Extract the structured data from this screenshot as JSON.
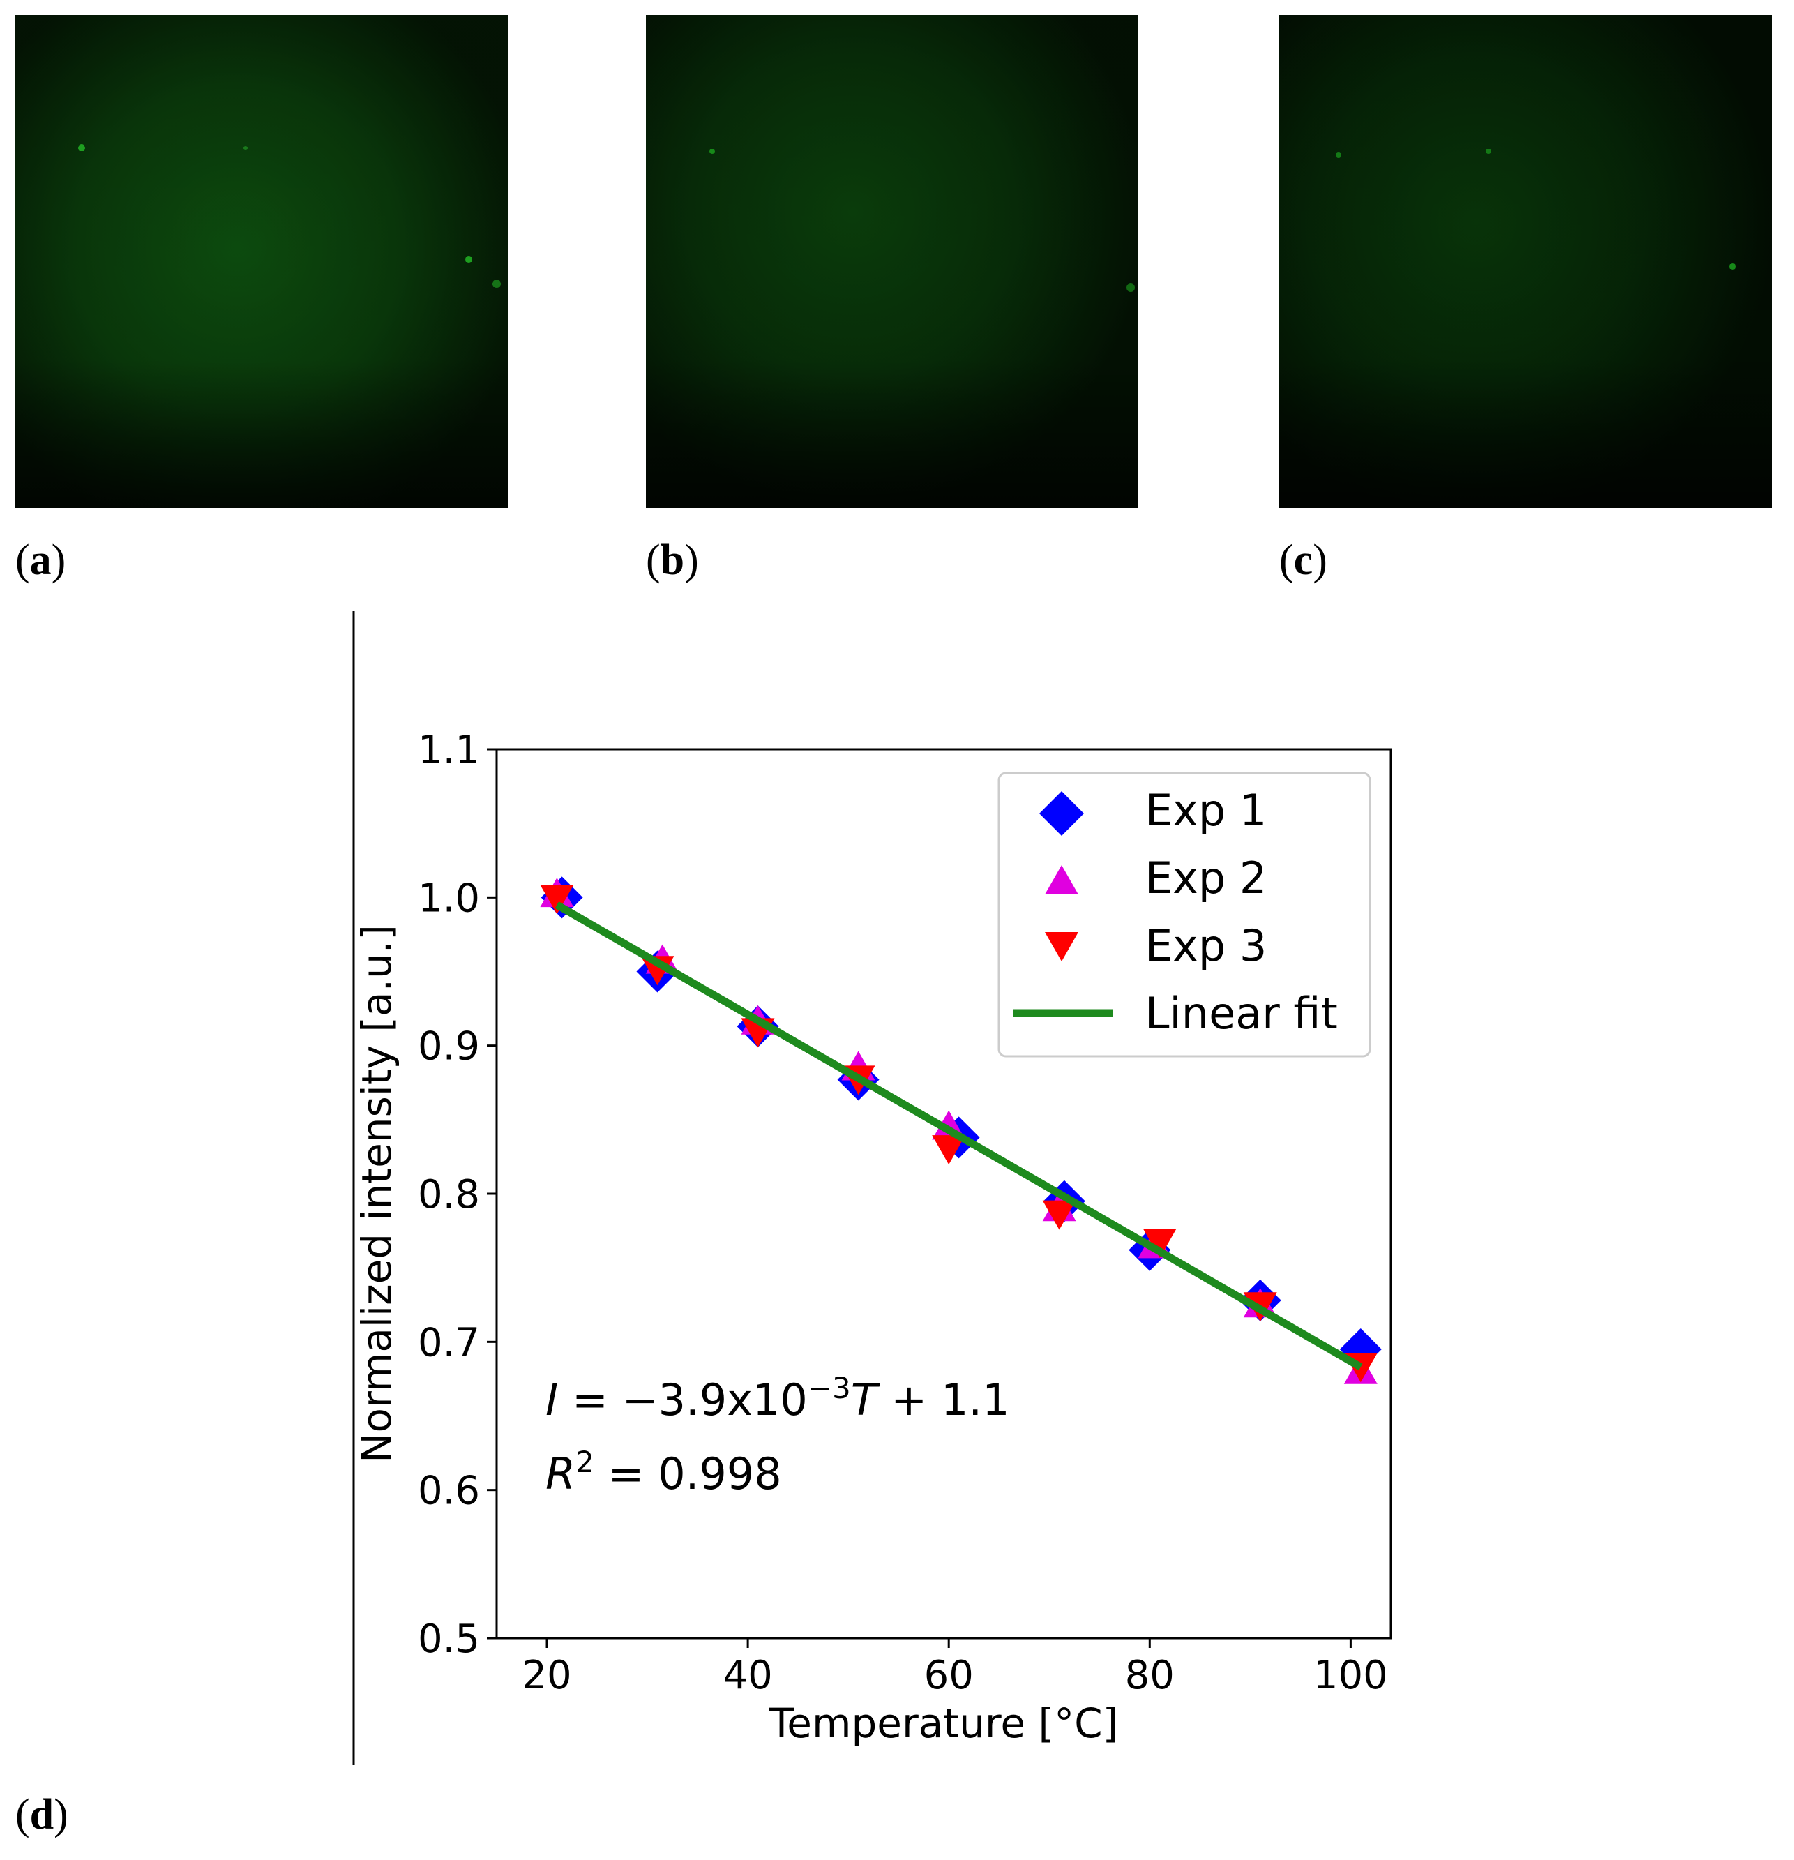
{
  "panels": [
    {
      "label_letter": "a",
      "image_name": "fluorescence-image-a"
    },
    {
      "label_letter": "b",
      "image_name": "fluorescence-image-b"
    },
    {
      "label_letter": "c",
      "image_name": "fluorescence-image-c"
    },
    {
      "label_letter": "d"
    }
  ],
  "colors": {
    "exp1": "#0000ff",
    "exp2": "#e000e0",
    "exp3": "#ff0000",
    "fit": "#1e8a1e",
    "fluorescence": "#1fb81f"
  },
  "chart_data": {
    "type": "scatter",
    "xlabel": "Temperature [°C]",
    "ylabel": "Normalized intensity [a.u.]",
    "xlim": [
      15,
      104
    ],
    "ylim": [
      0.5,
      1.1
    ],
    "xticks": [
      20,
      40,
      60,
      80,
      100
    ],
    "yticks": [
      0.5,
      0.6,
      0.7,
      0.8,
      0.9,
      1.0,
      1.1
    ],
    "xtick_labels": [
      "20",
      "40",
      "60",
      "80",
      "100"
    ],
    "ytick_labels": [
      "0.5",
      "0.6",
      "0.7",
      "0.8",
      "0.9",
      "1.0",
      "1.1"
    ],
    "legend_position": "top-right",
    "series": [
      {
        "name": "Exp 1",
        "marker": "diamond",
        "color": "#0000ff",
        "x": [
          21.5,
          31,
          41,
          51,
          61,
          71.5,
          80,
          91,
          101
        ],
        "y": [
          1.0,
          0.95,
          0.913,
          0.877,
          0.838,
          0.795,
          0.762,
          0.728,
          0.695
        ]
      },
      {
        "name": "Exp 2",
        "marker": "triangle-up",
        "color": "#e000e0",
        "x": [
          21,
          31.5,
          41,
          51,
          60,
          71,
          80.5,
          91,
          101
        ],
        "y": [
          1.002,
          0.957,
          0.916,
          0.885,
          0.845,
          0.79,
          0.765,
          0.725,
          0.68
        ]
      },
      {
        "name": "Exp 3",
        "marker": "triangle-down",
        "color": "#ff0000",
        "x": [
          21,
          31,
          41,
          51,
          60,
          71,
          81,
          91,
          101
        ],
        "y": [
          1.0,
          0.952,
          0.91,
          0.878,
          0.831,
          0.787,
          0.768,
          0.725,
          0.684
        ]
      }
    ],
    "fit": {
      "name": "Linear fit",
      "color": "#1e8a1e",
      "x": [
        21,
        101
      ],
      "y": [
        0.995,
        0.683
      ]
    },
    "annotations": {
      "equation_lhs": "I",
      "equation_mid": " = −3.9x10",
      "equation_exp": "−3",
      "equation_var": "T",
      "equation_rhs": " + 1.1",
      "r2_var": "R",
      "r2_exp": "2",
      "r2_rhs": " = 0.998"
    }
  }
}
